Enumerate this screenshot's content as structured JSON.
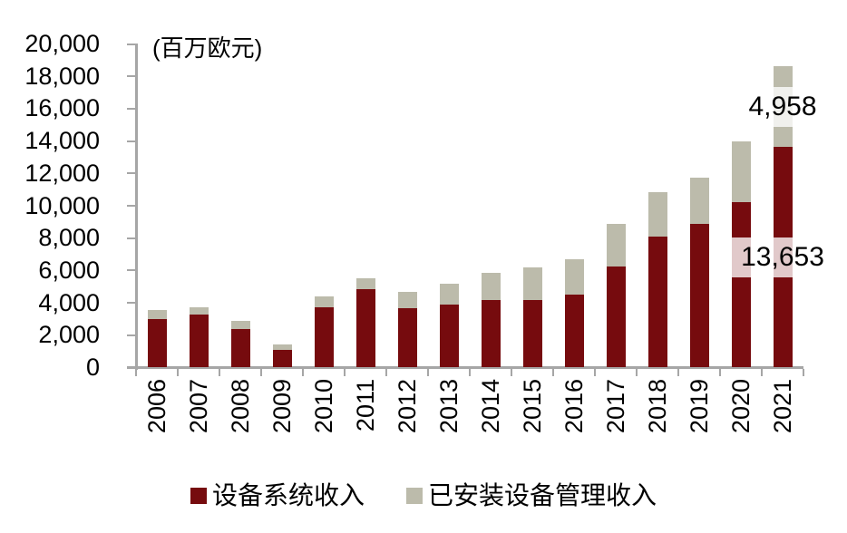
{
  "chart_data": {
    "type": "bar",
    "stacked": true,
    "unit_label": "(百万欧元)",
    "categories": [
      "2006",
      "2007",
      "2008",
      "2009",
      "2010",
      "2011",
      "2012",
      "2013",
      "2014",
      "2015",
      "2016",
      "2017",
      "2018",
      "2019",
      "2020",
      "2021"
    ],
    "series": [
      {
        "name": "设备系统收入",
        "color": "#760b0e",
        "values": [
          3010,
          3250,
          2400,
          1100,
          3700,
          4830,
          3680,
          3870,
          4170,
          4180,
          4500,
          6270,
          8070,
          8860,
          10240,
          13653
        ]
      },
      {
        "name": "已安装设备管理收入",
        "color": "#bcbbab",
        "values": [
          550,
          500,
          510,
          340,
          700,
          680,
          990,
          1330,
          1680,
          1990,
          2180,
          2620,
          2790,
          2850,
          3720,
          4958
        ]
      }
    ],
    "annotations": [
      {
        "text": "4,958",
        "category": "2021",
        "series_index": 1
      },
      {
        "text": "13,653",
        "category": "2021",
        "series_index": 0
      }
    ],
    "ylim": [
      0,
      20000
    ],
    "ytick_step": 2000,
    "ytick_labels_top_to_bottom": [
      "20,000",
      "18,000",
      "16,000",
      "14,000",
      "12,000",
      "10,000",
      "8,000",
      "6,000",
      "4,000",
      "2,000",
      "0"
    ],
    "xlabel": "",
    "ylabel": "",
    "grid": false,
    "legend_position": "bottom"
  },
  "colors": {
    "axis": "#a6a6a6",
    "text": "#000000",
    "annotation_bg": "rgba(255,255,255,0.78)"
  }
}
